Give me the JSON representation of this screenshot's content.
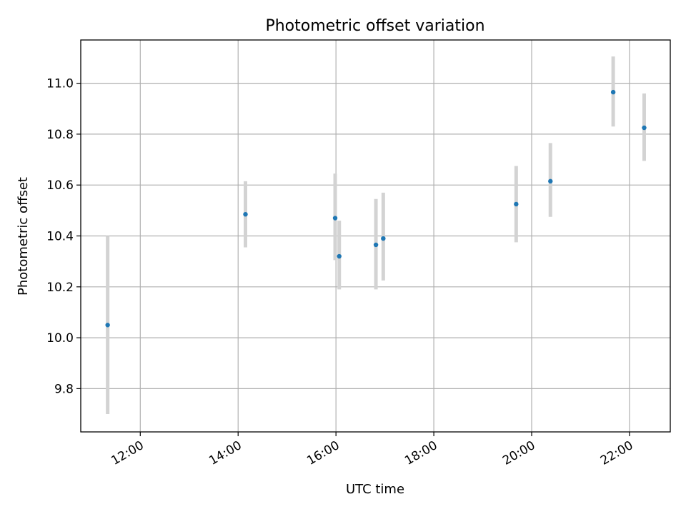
{
  "chart_data": {
    "type": "scatter",
    "title": "Photometric offset variation",
    "xlabel": "UTC time",
    "ylabel": "Photometric offset",
    "x_unit": "time of day (UTC)",
    "xlim": [
      "10:47",
      "22:50"
    ],
    "ylim": [
      9.63,
      11.17
    ],
    "x_ticks": [
      "12:00",
      "14:00",
      "16:00",
      "18:00",
      "20:00",
      "22:00"
    ],
    "y_ticks": [
      "9.8",
      "10.0",
      "10.2",
      "10.4",
      "10.6",
      "10.8",
      "11.0"
    ],
    "grid": true,
    "legend": "none",
    "colors": {
      "marker": "#1f77b4",
      "error_bar": "#d3d3d3",
      "grid": "#b0b0b0"
    },
    "points": [
      {
        "x": "11:20",
        "y": 10.05,
        "yerr_low": 9.7,
        "yerr_high": 10.4
      },
      {
        "x": "14:09",
        "y": 10.485,
        "yerr_low": 10.355,
        "yerr_high": 10.615
      },
      {
        "x": "15:59",
        "y": 10.47,
        "yerr_low": 10.305,
        "yerr_high": 10.645
      },
      {
        "x": "16:04",
        "y": 10.32,
        "yerr_low": 10.19,
        "yerr_high": 10.46
      },
      {
        "x": "16:49",
        "y": 10.365,
        "yerr_low": 10.19,
        "yerr_high": 10.545
      },
      {
        "x": "16:58",
        "y": 10.39,
        "yerr_low": 10.225,
        "yerr_high": 10.57
      },
      {
        "x": "19:41",
        "y": 10.525,
        "yerr_low": 10.375,
        "yerr_high": 10.675
      },
      {
        "x": "20:23",
        "y": 10.615,
        "yerr_low": 10.475,
        "yerr_high": 10.765
      },
      {
        "x": "21:40",
        "y": 10.965,
        "yerr_low": 10.83,
        "yerr_high": 11.105
      },
      {
        "x": "22:18",
        "y": 10.825,
        "yerr_low": 10.695,
        "yerr_high": 10.96
      }
    ]
  }
}
